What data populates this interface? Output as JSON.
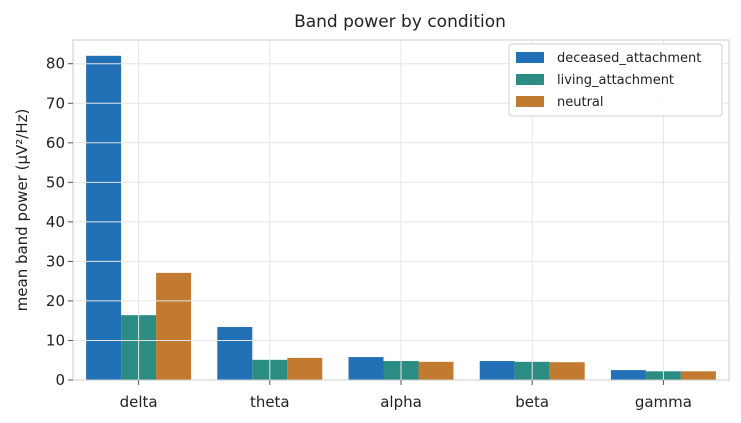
{
  "chart_data": {
    "type": "bar",
    "title": "Band power by condition",
    "xlabel": "",
    "ylabel": "mean band power (µV²/Hz)",
    "categories": [
      "delta",
      "theta",
      "alpha",
      "beta",
      "gamma"
    ],
    "series": [
      {
        "name": "deceased_attachment",
        "color": "#2270b5",
        "values": [
          82.0,
          13.4,
          5.8,
          4.8,
          2.5
        ]
      },
      {
        "name": "living_attachment",
        "color": "#2a8c82",
        "values": [
          16.4,
          5.1,
          4.8,
          4.6,
          2.2
        ]
      },
      {
        "name": "neutral",
        "color": "#c17a30",
        "values": [
          27.1,
          5.6,
          4.6,
          4.5,
          2.2
        ]
      }
    ],
    "ylim": [
      0,
      86
    ],
    "yticks": [
      0,
      10,
      20,
      30,
      40,
      50,
      60,
      70,
      80
    ],
    "grid": true,
    "legend_position": "top-right"
  }
}
